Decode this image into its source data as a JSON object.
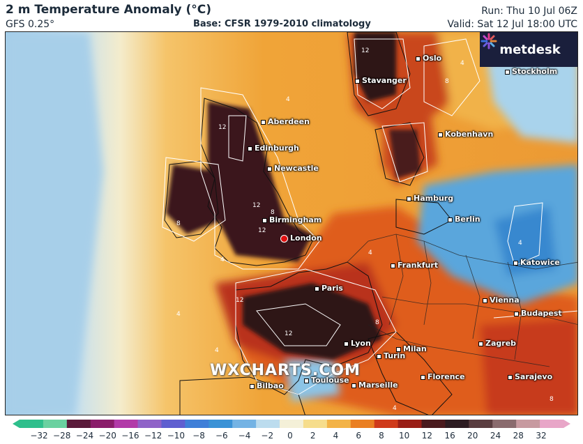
{
  "header": {
    "title": "2 m Temperature Anomaly (°C)",
    "model": "GFS 0.25°",
    "base": "Base: CFSR 1979-2010 climatology",
    "run": "Run: Thu 10 Jul 06Z",
    "valid": "Valid: Sat 12 Jul 18:00 UTC"
  },
  "logo": {
    "text": "metdesk",
    "icon": "asterisk-logo-icon"
  },
  "watermark": "WXCHARTS.COM",
  "cities": [
    {
      "id": "oslo",
      "name": "Oslo",
      "marker": "square"
    },
    {
      "id": "stockholm",
      "name": "Stockholm",
      "marker": "square"
    },
    {
      "id": "stavanger",
      "name": "Stavanger",
      "marker": "square"
    },
    {
      "id": "aberdeen",
      "name": "Aberdeen",
      "marker": "square"
    },
    {
      "id": "edinburgh",
      "name": "Edinburgh",
      "marker": "square"
    },
    {
      "id": "newcastle",
      "name": "Newcastle",
      "marker": "square"
    },
    {
      "id": "kobenhavn",
      "name": "Kobenhavn",
      "marker": "square"
    },
    {
      "id": "hamburg",
      "name": "Hamburg",
      "marker": "square"
    },
    {
      "id": "birmingham",
      "name": "Birmingham",
      "marker": "square"
    },
    {
      "id": "berlin",
      "name": "Berlin",
      "marker": "square"
    },
    {
      "id": "london",
      "name": "London",
      "marker": "red-circle"
    },
    {
      "id": "frankfurt",
      "name": "Frankfurt",
      "marker": "square"
    },
    {
      "id": "katowice",
      "name": "Katowice",
      "marker": "square"
    },
    {
      "id": "paris",
      "name": "Paris",
      "marker": "square"
    },
    {
      "id": "vienna",
      "name": "Vienna",
      "marker": "square"
    },
    {
      "id": "budapest",
      "name": "Budapest",
      "marker": "square"
    },
    {
      "id": "lyon",
      "name": "Lyon",
      "marker": "square"
    },
    {
      "id": "zagreb",
      "name": "Zagreb",
      "marker": "square"
    },
    {
      "id": "milan",
      "name": "Milan",
      "marker": "square"
    },
    {
      "id": "turin",
      "name": "Turin",
      "marker": "square"
    },
    {
      "id": "toulouse",
      "name": "Toulouse",
      "marker": "square"
    },
    {
      "id": "florence",
      "name": "Florence",
      "marker": "square"
    },
    {
      "id": "sarajevo",
      "name": "Sarajevo",
      "marker": "square"
    },
    {
      "id": "bilbao",
      "name": "Bilbao",
      "marker": "square"
    },
    {
      "id": "marseille",
      "name": "Marseille",
      "marker": "square"
    }
  ],
  "contour_labels": [
    "4",
    "4",
    "8",
    "12",
    "8",
    "12",
    "8",
    "12",
    "4",
    "12",
    "12",
    "8",
    "8",
    "4",
    "4",
    "12",
    "4",
    "4",
    "8",
    "4"
  ],
  "colorbar": {
    "ticks": [
      "−32",
      "−28",
      "−24",
      "−20",
      "−16",
      "−12",
      "−10",
      "−8",
      "−6",
      "−4",
      "−2",
      "0",
      "2",
      "4",
      "6",
      "8",
      "10",
      "12",
      "16",
      "20",
      "24",
      "28",
      "32"
    ],
    "colors": [
      "#2fbf8c",
      "#6ad1a0",
      "#5a1a3a",
      "#8a1d6a",
      "#b23aa8",
      "#8f63c8",
      "#5f5fd0",
      "#3f7fd8",
      "#3b92d6",
      "#74b3e4",
      "#bcdcee",
      "#f4f0d8",
      "#f6dd8c",
      "#f3b347",
      "#ea7f22",
      "#cf3a1a",
      "#9a1e16",
      "#4a1a1e",
      "#2d1c22",
      "#5a3d40",
      "#8a6b6e",
      "#c79aa0",
      "#e8a6c8"
    ]
  }
}
